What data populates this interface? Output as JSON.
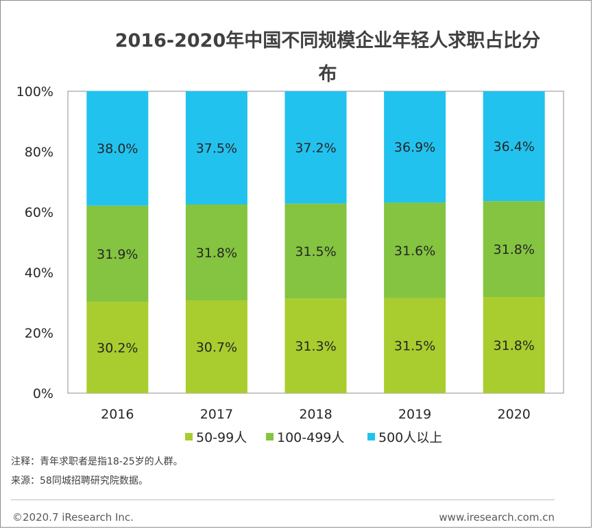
{
  "chart_data": {
    "type": "stacked_bar_percent",
    "title_lines": [
      "2016-2020年中国不同规模企业年轻人求职占比分",
      "布"
    ],
    "categories": [
      "2016",
      "2017",
      "2018",
      "2019",
      "2020"
    ],
    "series": [
      {
        "name": "50-99人",
        "color": "#a9cd2e",
        "values": [
          30.2,
          30.7,
          31.3,
          31.5,
          31.8
        ],
        "labels": [
          "30.2%",
          "30.7%",
          "31.3%",
          "31.5%",
          "31.8%"
        ]
      },
      {
        "name": "100-499人",
        "color": "#84c440",
        "values": [
          31.9,
          31.8,
          31.5,
          31.6,
          31.8
        ],
        "labels": [
          "31.9%",
          "31.8%",
          "31.5%",
          "31.6%",
          "31.8%"
        ]
      },
      {
        "name": "500人以上",
        "color": "#22c2ee",
        "values": [
          38.0,
          37.5,
          37.2,
          36.9,
          36.4
        ],
        "labels": [
          "38.0%",
          "37.5%",
          "37.2%",
          "36.9%",
          "36.4%"
        ]
      }
    ],
    "y_ticks": [
      0,
      20,
      40,
      60,
      80,
      100
    ],
    "y_tick_labels": [
      "0%",
      "20%",
      "40%",
      "60%",
      "80%",
      "100%"
    ],
    "ylim": [
      0,
      100
    ],
    "legend_position": "bottom"
  },
  "notes": {
    "note": "注释：青年求职者是指18-25岁的人群。",
    "source": "来源：58同城招聘研究院数据。"
  },
  "footer": {
    "copyright": "©2020.7 iResearch Inc.",
    "website": "www.iresearch.com.cn"
  }
}
